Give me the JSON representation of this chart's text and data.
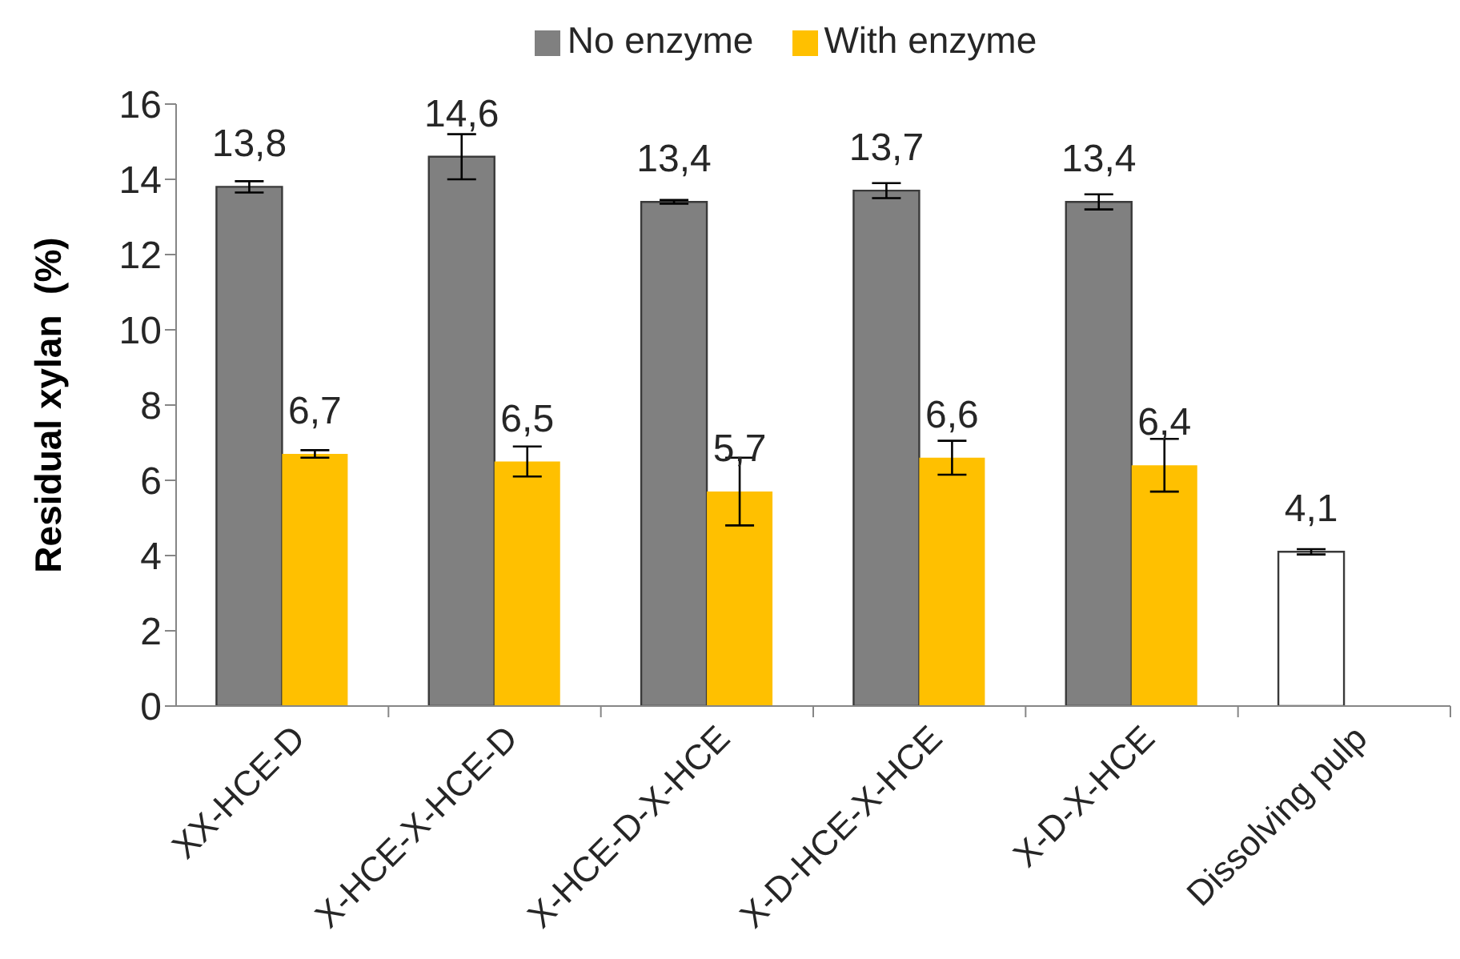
{
  "chart_data": {
    "type": "bar",
    "ylabel": "Residual xylan  (%)",
    "categories": [
      "XX-HCE-D",
      "X-HCE-X-HCE-D",
      "X-HCE-D-X-HCE",
      "X-D-HCE-X-HCE",
      "X-D-X-HCE",
      "Dissolving pulp"
    ],
    "series": [
      {
        "name": "No enzyme",
        "color": "#808080",
        "colors": [
          "#808080",
          "#808080",
          "#808080",
          "#808080",
          "#808080",
          "#ffffff"
        ],
        "values": [
          13.8,
          14.6,
          13.4,
          13.7,
          13.4,
          4.1
        ],
        "errors": [
          0.15,
          0.6,
          0.05,
          0.2,
          0.2,
          0.07
        ],
        "value_labels": [
          "13,8",
          "14,6",
          "13,4",
          "13,7",
          "13,4",
          "4,1"
        ]
      },
      {
        "name": "With enzyme",
        "color": "#ffc000",
        "values": [
          6.7,
          6.5,
          5.7,
          6.6,
          6.4,
          null
        ],
        "errors": [
          0.1,
          0.4,
          0.9,
          0.45,
          0.7,
          null
        ],
        "value_labels": [
          "6,7",
          "6,5",
          "5,7",
          "6,6",
          "6,4",
          null
        ]
      }
    ],
    "ylim": [
      0,
      16
    ],
    "yticks": [
      0,
      2,
      4,
      6,
      8,
      10,
      12,
      14,
      16
    ],
    "legend": "top"
  }
}
